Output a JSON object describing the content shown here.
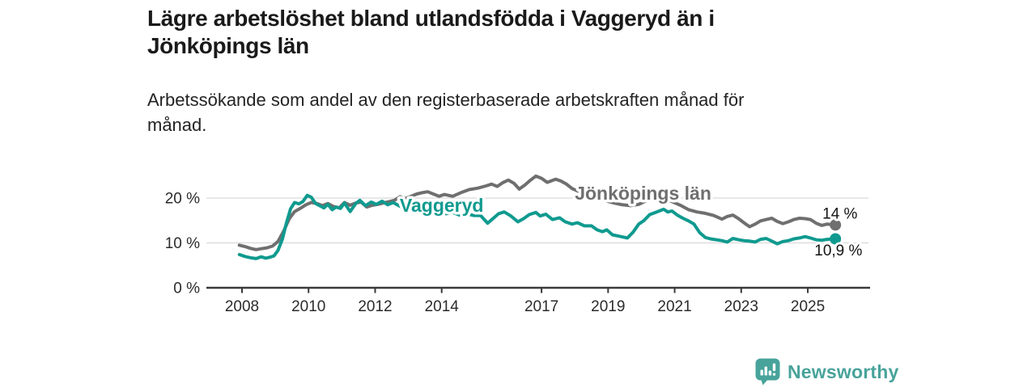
{
  "title": {
    "line1": "Lägre arbetslöshet bland utlandsfödda i Vaggeryd än i",
    "line2": "Jönköpings län"
  },
  "subtitle": {
    "line1": "Arbetssökande som andel av den registerbaserade arbetskraften månad för",
    "line2": "månad."
  },
  "branding": {
    "text": "Newsworthy",
    "icon": "speech-bubble-bar-chart-icon",
    "color": "#48a39b"
  },
  "chart_data": {
    "type": "line",
    "title": "Lägre arbetslöshet bland utlandsfödda i Vaggeryd än i Jönköpings län",
    "subtitle": "Arbetssökande som andel av den registerbaserade arbetskraften månad för månad.",
    "xlabel": "",
    "ylabel": "",
    "x_axis": {
      "unit": "year",
      "lim": [
        2007.85,
        2026.9
      ],
      "ticks": [
        "2008",
        "2010",
        "2012",
        "2014",
        "2017",
        "2019",
        "2021",
        "2023",
        "2025"
      ],
      "tick_values": [
        2008,
        2010,
        2012,
        2014,
        2017,
        2019,
        2021,
        2023,
        2025
      ]
    },
    "y_axis": {
      "unit": "percent",
      "lim": [
        0,
        25
      ],
      "grid": true,
      "ticks": [
        {
          "v": 0,
          "label": "0 %"
        },
        {
          "v": 10,
          "label": "10 %"
        },
        {
          "v": 20,
          "label": "20 %"
        }
      ]
    },
    "legend_position": "direct-labels-on-lines",
    "colors": {
      "vaggeryd": "#109a8f",
      "jonkopings_lan": "#6f6f6f",
      "gridline": "#d9d9d9",
      "axis": "#3a3a3a"
    },
    "series": [
      {
        "name": "Jönköpings län",
        "color": "#6f6f6f",
        "end_value": 14.0,
        "end_value_label": "14 %",
        "points": [
          [
            2007.92,
            9.5
          ],
          [
            2008.08,
            9.2
          ],
          [
            2008.25,
            8.8
          ],
          [
            2008.42,
            8.5
          ],
          [
            2008.58,
            8.7
          ],
          [
            2008.75,
            8.9
          ],
          [
            2008.92,
            9.3
          ],
          [
            2009.08,
            10.3
          ],
          [
            2009.25,
            12.6
          ],
          [
            2009.42,
            15.4
          ],
          [
            2009.58,
            17.0
          ],
          [
            2009.75,
            17.7
          ],
          [
            2009.92,
            18.5
          ],
          [
            2010.08,
            19.0
          ],
          [
            2010.25,
            18.8
          ],
          [
            2010.42,
            18.3
          ],
          [
            2010.58,
            18.8
          ],
          [
            2010.75,
            18.1
          ],
          [
            2010.92,
            17.8
          ],
          [
            2011.08,
            19.0
          ],
          [
            2011.25,
            18.4
          ],
          [
            2011.42,
            18.9
          ],
          [
            2011.58,
            19.1
          ],
          [
            2011.75,
            18.0
          ],
          [
            2011.92,
            18.4
          ],
          [
            2012.08,
            18.6
          ],
          [
            2012.25,
            18.9
          ],
          [
            2012.42,
            19.2
          ],
          [
            2012.58,
            19.5
          ],
          [
            2012.75,
            20.3
          ],
          [
            2012.92,
            19.9
          ],
          [
            2013.08,
            20.4
          ],
          [
            2013.25,
            20.9
          ],
          [
            2013.42,
            21.2
          ],
          [
            2013.58,
            21.4
          ],
          [
            2013.75,
            20.9
          ],
          [
            2013.92,
            20.4
          ],
          [
            2014.08,
            20.8
          ],
          [
            2014.33,
            20.4
          ],
          [
            2014.58,
            21.2
          ],
          [
            2014.83,
            21.9
          ],
          [
            2015.08,
            22.2
          ],
          [
            2015.33,
            22.7
          ],
          [
            2015.5,
            23.1
          ],
          [
            2015.67,
            22.6
          ],
          [
            2015.83,
            23.4
          ],
          [
            2016.0,
            24.0
          ],
          [
            2016.17,
            23.3
          ],
          [
            2016.33,
            22.0
          ],
          [
            2016.5,
            22.9
          ],
          [
            2016.67,
            24.0
          ],
          [
            2016.83,
            24.9
          ],
          [
            2017.0,
            24.4
          ],
          [
            2017.17,
            23.5
          ],
          [
            2017.42,
            24.2
          ],
          [
            2017.58,
            23.8
          ],
          [
            2017.75,
            23.1
          ],
          [
            2017.92,
            22.1
          ],
          [
            2018.17,
            21.3
          ],
          [
            2018.42,
            20.6
          ],
          [
            2018.67,
            19.9
          ],
          [
            2018.92,
            19.4
          ],
          [
            2019.17,
            18.9
          ],
          [
            2019.42,
            18.5
          ],
          [
            2019.67,
            18.3
          ],
          [
            2019.92,
            18.6
          ],
          [
            2020.17,
            19.5
          ],
          [
            2020.42,
            20.0
          ],
          [
            2020.67,
            19.8
          ],
          [
            2020.92,
            19.2
          ],
          [
            2021.17,
            18.4
          ],
          [
            2021.42,
            17.4
          ],
          [
            2021.67,
            16.9
          ],
          [
            2021.92,
            16.6
          ],
          [
            2022.17,
            16.1
          ],
          [
            2022.42,
            15.3
          ],
          [
            2022.58,
            15.9
          ],
          [
            2022.75,
            16.2
          ],
          [
            2022.92,
            15.4
          ],
          [
            2023.08,
            14.5
          ],
          [
            2023.25,
            13.6
          ],
          [
            2023.42,
            14.2
          ],
          [
            2023.58,
            14.9
          ],
          [
            2023.75,
            15.2
          ],
          [
            2023.92,
            15.5
          ],
          [
            2024.08,
            14.8
          ],
          [
            2024.25,
            14.3
          ],
          [
            2024.42,
            14.7
          ],
          [
            2024.58,
            15.2
          ],
          [
            2024.75,
            15.5
          ],
          [
            2024.92,
            15.4
          ],
          [
            2025.08,
            15.2
          ],
          [
            2025.25,
            14.4
          ],
          [
            2025.42,
            13.9
          ],
          [
            2025.58,
            14.2
          ],
          [
            2025.83,
            14.0
          ]
        ]
      },
      {
        "name": "Vaggeryd",
        "color": "#109a8f",
        "end_value": 10.9,
        "end_value_label": "10,9 %",
        "points": [
          [
            2007.92,
            7.4
          ],
          [
            2008.08,
            7.0
          ],
          [
            2008.25,
            6.7
          ],
          [
            2008.42,
            6.5
          ],
          [
            2008.58,
            6.9
          ],
          [
            2008.71,
            6.6
          ],
          [
            2008.83,
            6.8
          ],
          [
            2008.96,
            7.1
          ],
          [
            2009.08,
            8.3
          ],
          [
            2009.21,
            10.8
          ],
          [
            2009.33,
            14.3
          ],
          [
            2009.46,
            17.6
          ],
          [
            2009.58,
            19.0
          ],
          [
            2009.71,
            18.7
          ],
          [
            2009.83,
            19.2
          ],
          [
            2009.96,
            20.6
          ],
          [
            2010.08,
            20.2
          ],
          [
            2010.21,
            18.8
          ],
          [
            2010.33,
            18.3
          ],
          [
            2010.46,
            17.8
          ],
          [
            2010.58,
            18.6
          ],
          [
            2010.71,
            17.4
          ],
          [
            2010.83,
            18.0
          ],
          [
            2010.96,
            17.7
          ],
          [
            2011.08,
            18.9
          ],
          [
            2011.25,
            17.0
          ],
          [
            2011.42,
            18.8
          ],
          [
            2011.54,
            19.5
          ],
          [
            2011.71,
            18.3
          ],
          [
            2011.88,
            19.1
          ],
          [
            2012.04,
            18.6
          ],
          [
            2012.21,
            19.3
          ],
          [
            2012.38,
            18.5
          ],
          [
            2012.54,
            19.0
          ],
          [
            2012.71,
            18.3
          ],
          [
            2012.88,
            17.7
          ],
          [
            2013.08,
            17.3
          ],
          [
            2013.29,
            17.5
          ],
          [
            2013.5,
            17.0
          ],
          [
            2013.71,
            16.7
          ],
          [
            2013.92,
            16.9
          ],
          [
            2014.13,
            16.5
          ],
          [
            2014.33,
            16.8
          ],
          [
            2014.54,
            16.2
          ],
          [
            2014.75,
            16.5
          ],
          [
            2014.96,
            16.1
          ],
          [
            2015.17,
            16.1
          ],
          [
            2015.38,
            14.4
          ],
          [
            2015.54,
            15.4
          ],
          [
            2015.71,
            16.5
          ],
          [
            2015.88,
            16.9
          ],
          [
            2016.08,
            16.0
          ],
          [
            2016.29,
            14.7
          ],
          [
            2016.46,
            15.4
          ],
          [
            2016.63,
            16.3
          ],
          [
            2016.83,
            16.8
          ],
          [
            2016.96,
            16.0
          ],
          [
            2017.13,
            16.4
          ],
          [
            2017.33,
            15.2
          ],
          [
            2017.54,
            15.6
          ],
          [
            2017.71,
            14.7
          ],
          [
            2017.92,
            14.2
          ],
          [
            2018.08,
            14.5
          ],
          [
            2018.29,
            13.8
          ],
          [
            2018.5,
            13.8
          ],
          [
            2018.67,
            12.9
          ],
          [
            2018.83,
            12.5
          ],
          [
            2018.96,
            12.9
          ],
          [
            2019.13,
            11.8
          ],
          [
            2019.33,
            11.5
          ],
          [
            2019.58,
            11.1
          ],
          [
            2019.75,
            12.4
          ],
          [
            2019.92,
            14.2
          ],
          [
            2020.08,
            15.0
          ],
          [
            2020.25,
            16.3
          ],
          [
            2020.46,
            16.9
          ],
          [
            2020.67,
            17.5
          ],
          [
            2020.79,
            16.9
          ],
          [
            2020.92,
            17.1
          ],
          [
            2021.08,
            16.2
          ],
          [
            2021.25,
            15.5
          ],
          [
            2021.42,
            14.9
          ],
          [
            2021.58,
            14.2
          ],
          [
            2021.75,
            12.3
          ],
          [
            2021.92,
            11.2
          ],
          [
            2022.08,
            10.9
          ],
          [
            2022.25,
            10.7
          ],
          [
            2022.42,
            10.5
          ],
          [
            2022.58,
            10.2
          ],
          [
            2022.75,
            11.0
          ],
          [
            2022.92,
            10.7
          ],
          [
            2023.08,
            10.5
          ],
          [
            2023.25,
            10.4
          ],
          [
            2023.42,
            10.2
          ],
          [
            2023.58,
            10.8
          ],
          [
            2023.75,
            11.0
          ],
          [
            2023.92,
            10.4
          ],
          [
            2024.08,
            9.8
          ],
          [
            2024.25,
            10.3
          ],
          [
            2024.42,
            10.5
          ],
          [
            2024.58,
            10.9
          ],
          [
            2024.75,
            11.1
          ],
          [
            2024.92,
            11.4
          ],
          [
            2025.08,
            11.1
          ],
          [
            2025.25,
            10.7
          ],
          [
            2025.42,
            10.6
          ],
          [
            2025.58,
            10.8
          ],
          [
            2025.83,
            10.9
          ]
        ]
      }
    ],
    "series_labels": [
      {
        "text": "Vaggeryd",
        "t": 2012.74,
        "v": 16.9,
        "color": "#109a8f"
      },
      {
        "text": "Jönköpings län",
        "t": 2018.0,
        "v": 19.6,
        "color": "#6f6f6f"
      }
    ],
    "end_labels": [
      {
        "text": "14 %",
        "t": 2025.44,
        "v": 15.4
      },
      {
        "text": "10,9 %",
        "t": 2025.2,
        "v": 7.2
      }
    ]
  }
}
